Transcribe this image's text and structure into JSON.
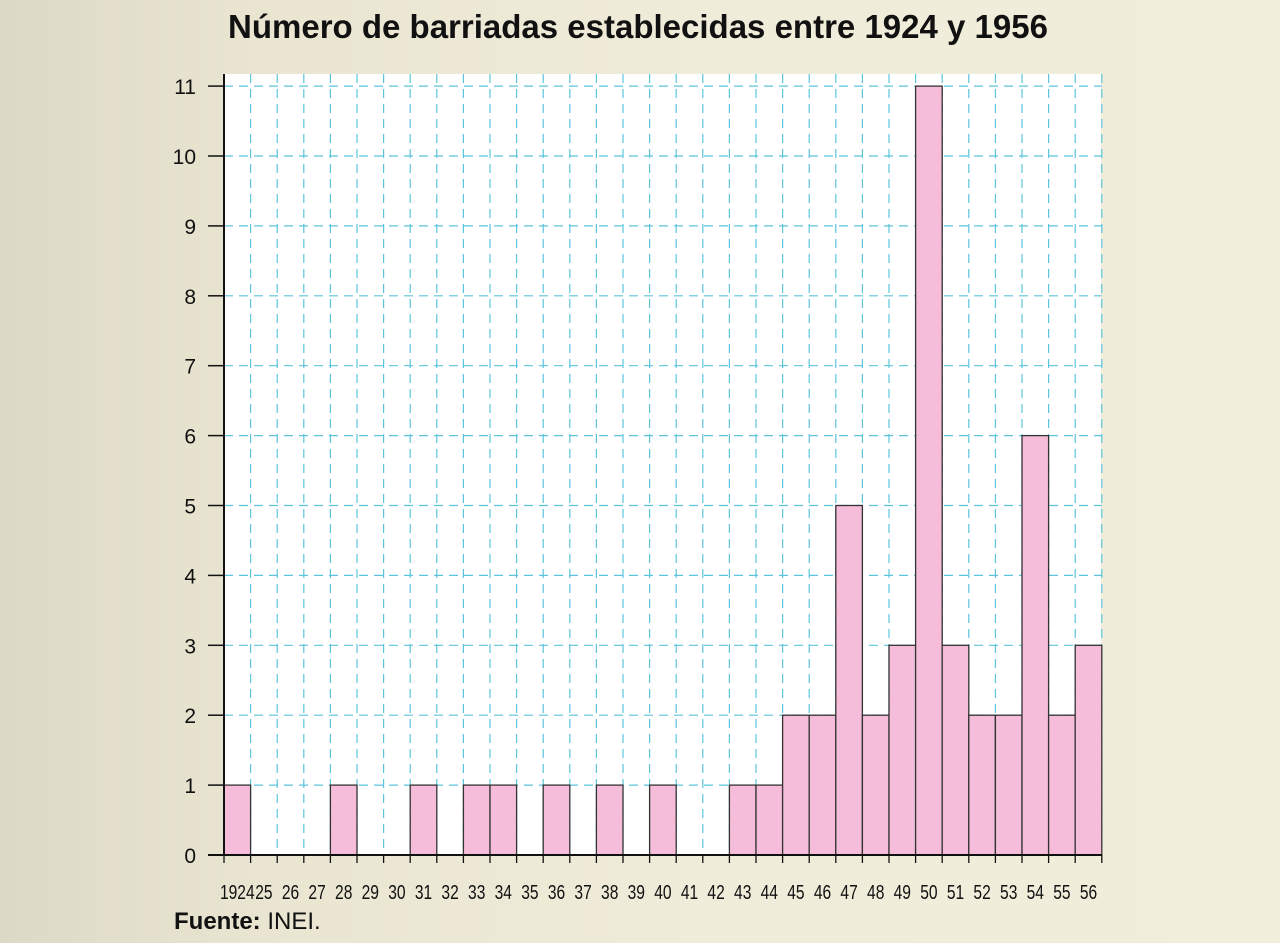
{
  "chart_data": {
    "type": "bar",
    "title": "Número de barriadas establecidas entre 1924 y 1956",
    "xlabel": "",
    "ylabel": "",
    "ylim": [
      0,
      11
    ],
    "yticks": [
      "0",
      "1",
      "2",
      "3",
      "4",
      "5",
      "6",
      "7",
      "8",
      "9",
      "10",
      "11"
    ],
    "categories": [
      "1924",
      "25",
      "26",
      "27",
      "28",
      "29",
      "30",
      "31",
      "32",
      "33",
      "34",
      "35",
      "36",
      "37",
      "38",
      "39",
      "40",
      "41",
      "42",
      "43",
      "44",
      "45",
      "46",
      "47",
      "48",
      "49",
      "50",
      "51",
      "52",
      "53",
      "54",
      "55",
      "56"
    ],
    "values": [
      1,
      0,
      0,
      0,
      1,
      0,
      0,
      1,
      0,
      1,
      1,
      0,
      1,
      0,
      1,
      0,
      1,
      0,
      0,
      1,
      1,
      2,
      2,
      5,
      2,
      3,
      11,
      3,
      2,
      2,
      6,
      2,
      3
    ],
    "grid": true,
    "colors": {
      "bar_fill": "#f5bdd9",
      "bar_stroke": "#333333",
      "grid": "#5cc4dc",
      "plot_background": "#ffffff"
    }
  },
  "source": {
    "label": "Fuente:",
    "text": " INEI."
  }
}
